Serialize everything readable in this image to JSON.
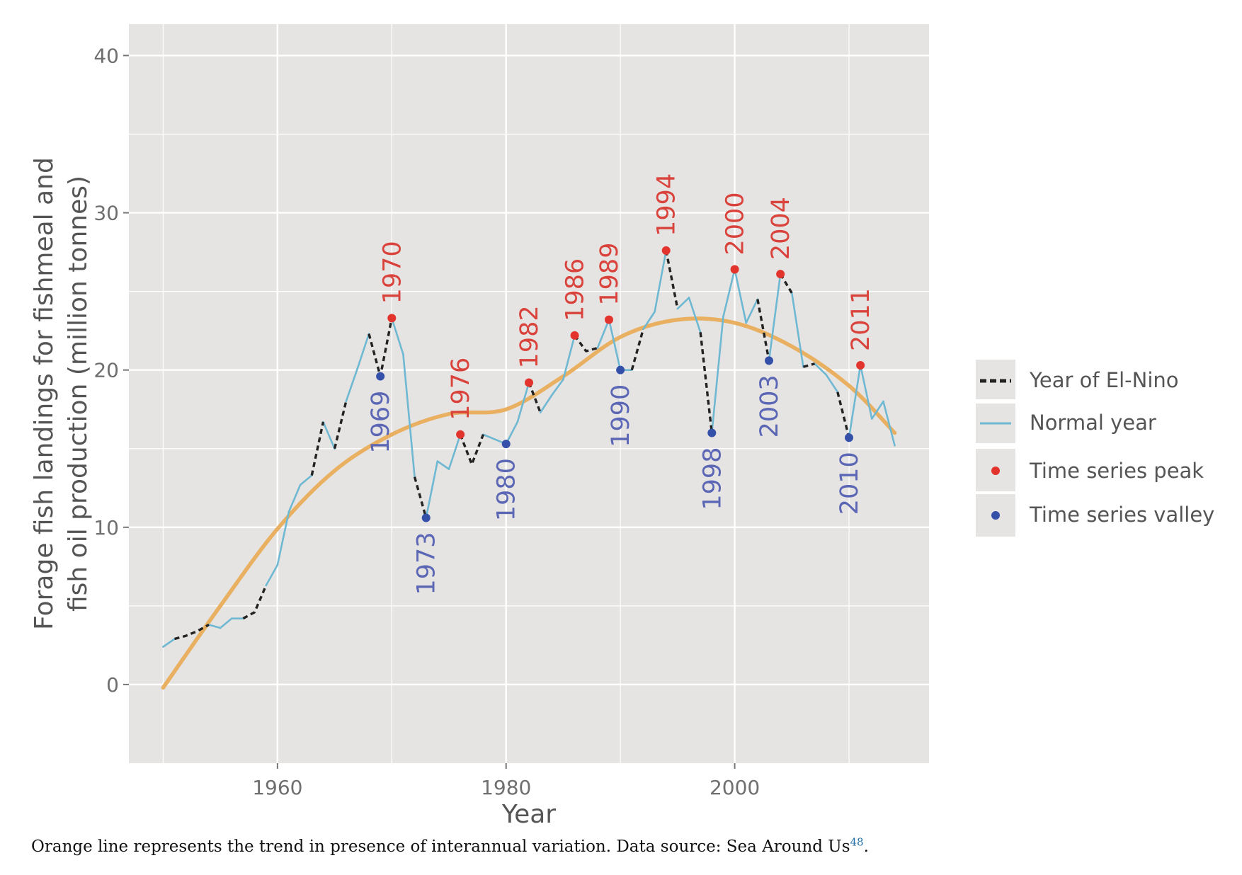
{
  "chart_data": {
    "type": "line",
    "xlabel": "Year",
    "ylabel_lines": [
      "Forage fish landings for fishmeal and",
      "fish oil production (million tonnes)"
    ],
    "xlim": [
      1947,
      2017
    ],
    "ylim": [
      -5,
      42
    ],
    "xticks": [
      1960,
      1980,
      2000
    ],
    "yticks": [
      0,
      10,
      20,
      30,
      40
    ],
    "grid": true,
    "legend_position": "right",
    "legend": {
      "el_nino": "Year of El-Nino",
      "normal": "Normal year",
      "peak": "Time series peak",
      "valley": "Time series valley"
    },
    "colors": {
      "normal": "#6fb8d2",
      "el_nino": "#222222",
      "trend": "#e8b060",
      "peak": "#e2332c",
      "valley": "#3550a8",
      "panel": "#e6e4e3",
      "grid": "#ffffff"
    },
    "series": [
      {
        "name": "Normal year",
        "x": [
          1950,
          1951,
          1952,
          1953,
          1954,
          1955,
          1956,
          1957,
          1958,
          1959,
          1960,
          1961,
          1962,
          1963,
          1964,
          1965,
          1966,
          1967,
          1968,
          1969,
          1970,
          1971,
          1972,
          1973,
          1974,
          1975,
          1976,
          1977,
          1978,
          1979,
          1980,
          1981,
          1982,
          1983,
          1984,
          1985,
          1986,
          1987,
          1988,
          1989,
          1990,
          1991,
          1992,
          1993,
          1994,
          1995,
          1996,
          1997,
          1998,
          1999,
          2000,
          2001,
          2002,
          2003,
          2004,
          2005,
          2006,
          2007,
          2008,
          2009,
          2010,
          2011,
          2012,
          2013,
          2014
        ],
        "y": [
          2.4,
          2.9,
          3.1,
          3.4,
          3.8,
          3.6,
          4.2,
          4.2,
          4.6,
          6.3,
          7.6,
          11.0,
          12.7,
          13.3,
          16.7,
          15.0,
          18.0,
          20.1,
          22.3,
          19.6,
          23.3,
          21.0,
          13.2,
          10.6,
          14.2,
          13.7,
          15.9,
          14.0,
          15.9,
          15.6,
          15.3,
          16.7,
          19.2,
          17.3,
          18.4,
          19.4,
          22.2,
          21.2,
          21.4,
          23.2,
          20.0,
          20.0,
          22.6,
          23.7,
          27.6,
          23.9,
          24.6,
          22.4,
          16.0,
          23.4,
          26.4,
          23.0,
          24.5,
          20.6,
          26.1,
          24.9,
          20.2,
          20.4,
          19.7,
          18.6,
          15.7,
          20.3,
          16.9,
          18.0,
          15.2
        ],
        "el_nino_segments": [
          [
            1951,
            1954
          ],
          [
            1957,
            1959
          ],
          [
            1963,
            1964
          ],
          [
            1965,
            1966
          ],
          [
            1968,
            1970
          ],
          [
            1972,
            1973
          ],
          [
            1976,
            1978
          ],
          [
            1982,
            1983
          ],
          [
            1986,
            1988
          ],
          [
            1991,
            1992
          ],
          [
            1994,
            1995
          ],
          [
            1997,
            1998
          ],
          [
            2002,
            2003
          ],
          [
            2004,
            2005
          ],
          [
            2006,
            2007
          ],
          [
            2009,
            2010
          ]
        ]
      },
      {
        "name": "Trend",
        "x": [
          1950,
          1955,
          1960,
          1965,
          1970,
          1975,
          1980,
          1985,
          1990,
          1995,
          2000,
          2005,
          2010,
          2014
        ],
        "y": [
          -0.2,
          5.0,
          9.9,
          13.6,
          15.9,
          17.2,
          17.5,
          19.6,
          22.1,
          23.2,
          23.0,
          21.5,
          19.0,
          16.0
        ]
      }
    ],
    "peaks": [
      {
        "year": 1970,
        "value": 23.3,
        "label": "1970"
      },
      {
        "year": 1976,
        "value": 15.9,
        "label": "1976"
      },
      {
        "year": 1982,
        "value": 19.2,
        "label": "1982"
      },
      {
        "year": 1986,
        "value": 22.2,
        "label": "1986"
      },
      {
        "year": 1989,
        "value": 23.2,
        "label": "1989"
      },
      {
        "year": 1994,
        "value": 27.6,
        "label": "1994"
      },
      {
        "year": 2000,
        "value": 26.4,
        "label": "2000"
      },
      {
        "year": 2004,
        "value": 26.1,
        "label": "2004"
      },
      {
        "year": 2011,
        "value": 20.3,
        "label": "2011"
      }
    ],
    "valleys": [
      {
        "year": 1969,
        "value": 19.6,
        "label": "1969"
      },
      {
        "year": 1973,
        "value": 10.6,
        "label": "1973"
      },
      {
        "year": 1980,
        "value": 15.3,
        "label": "1980"
      },
      {
        "year": 1990,
        "value": 20.0,
        "label": "1990"
      },
      {
        "year": 1998,
        "value": 16.0,
        "label": "1998"
      },
      {
        "year": 2003,
        "value": 20.6,
        "label": "2003"
      },
      {
        "year": 2010,
        "value": 15.7,
        "label": "2010"
      }
    ]
  },
  "caption": {
    "text": "Orange line represents the trend in presence of interannual variation. Data source: Sea Around Us",
    "ref": "48",
    "end": "."
  }
}
